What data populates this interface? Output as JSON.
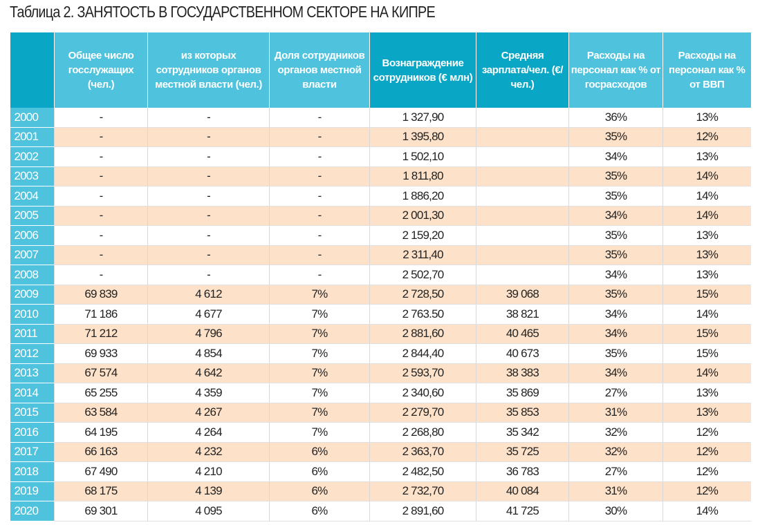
{
  "title": "Таблица 2. ЗАНЯТОСТЬ В ГОСУДАРСТВЕННОМ СЕКТОРЕ НА КИПРЕ",
  "colors": {
    "header_dark": "#0aa6c6",
    "header_light": "#4fc3dd",
    "stripe": "#fde1c8"
  },
  "headers": [
    "",
    "Общее число госслужащих (чел.)",
    "из которых сотрудников органов местной власти (чел.)",
    "Доля сотрудников органов местной власти",
    "Вознаграждение сотрудников (€ млн)",
    "Средняя зарплата/чел. (€/чел.)",
    "Расходы на персонал как % от госрасходов",
    "Расходы на персонал как % от ВВП"
  ],
  "rows": [
    [
      "2000",
      "-",
      "-",
      "-",
      "1 327,90",
      "",
      "36%",
      "13%"
    ],
    [
      "2001",
      "-",
      "-",
      "-",
      "1 395,80",
      "",
      "35%",
      "12%"
    ],
    [
      "2002",
      "-",
      "-",
      "-",
      "1 502,10",
      "",
      "34%",
      "13%"
    ],
    [
      "2003",
      "-",
      "-",
      "-",
      "1 811,80",
      "",
      "35%",
      "14%"
    ],
    [
      "2004",
      "-",
      "-",
      "-",
      "1 886,20",
      "",
      "35%",
      "14%"
    ],
    [
      "2005",
      "-",
      "-",
      "-",
      "2 001,30",
      "",
      "34%",
      "14%"
    ],
    [
      "2006",
      "-",
      "-",
      "-",
      "2 159,20",
      "",
      "35%",
      "13%"
    ],
    [
      "2007",
      "-",
      "-",
      "-",
      "2 311,40",
      "",
      "35%",
      "13%"
    ],
    [
      "2008",
      "-",
      "-",
      "-",
      "2 502,70",
      "",
      "34%",
      "13%"
    ],
    [
      "2009",
      "69 839",
      "4 612",
      "7%",
      "2 728,50",
      "39 068",
      "35%",
      "15%"
    ],
    [
      "2010",
      "71 186",
      "4 677",
      "7%",
      "2 763.50",
      "38 821",
      "34%",
      "14%"
    ],
    [
      "2011",
      "71 212",
      "4 796",
      "7%",
      "2 881,60",
      "40 465",
      "34%",
      "15%"
    ],
    [
      "2012",
      "69 933",
      "4 854",
      "7%",
      "2 844,40",
      "40 673",
      "35%",
      "15%"
    ],
    [
      "2013",
      "67 574",
      "4 642",
      "7%",
      "2 593,70",
      "38 383",
      "34%",
      "14%"
    ],
    [
      "2014",
      "65 255",
      "4 359",
      "7%",
      "2 340,60",
      "35 869",
      "27%",
      "13%"
    ],
    [
      "2015",
      "63 584",
      "4 267",
      "7%",
      "2 279,70",
      "35 853",
      "31%",
      "13%"
    ],
    [
      "2016",
      "64 195",
      "4 264",
      "7%",
      "2 268,80",
      "35 342",
      "32%",
      "12%"
    ],
    [
      "2017",
      "66 163",
      "4 232",
      "6%",
      "2 363,70",
      "35 725",
      "32%",
      "12%"
    ],
    [
      "2018",
      "67 490",
      "4 210",
      "6%",
      "2 482,50",
      "36 783",
      "27%",
      "12%"
    ],
    [
      "2019",
      "68 175",
      "4 139",
      "6%",
      "2 732,70",
      "40 084",
      "31%",
      "12%"
    ],
    [
      "2020",
      "69 301",
      "4 095",
      "6%",
      "2 891,60",
      "41 725",
      "30%",
      "14%"
    ]
  ]
}
